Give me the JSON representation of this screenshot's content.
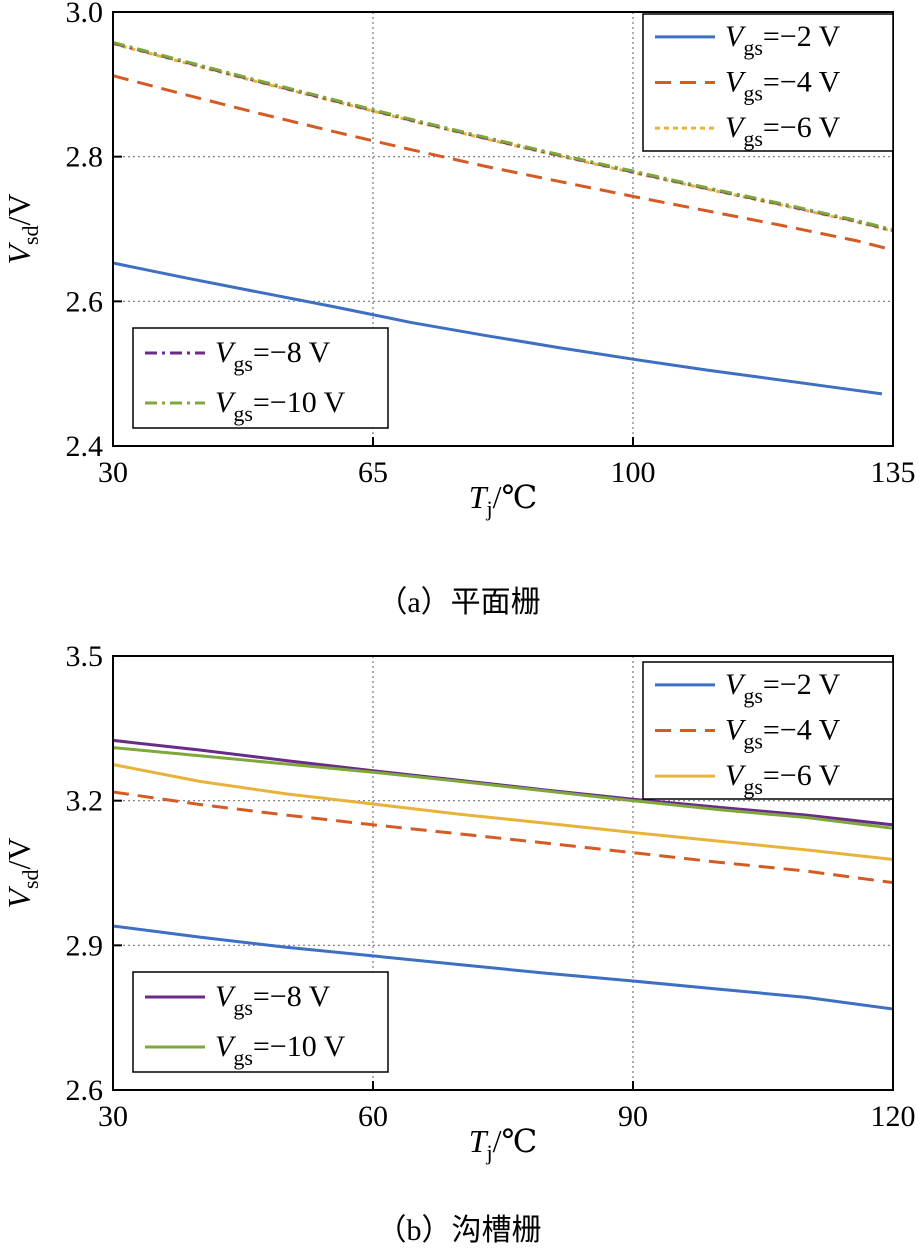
{
  "chart_data": [
    {
      "type": "line",
      "caption": "（a）平面栅",
      "xlabel_symbol": "T",
      "xlabel_sub": "j",
      "xlabel_unit": "/℃",
      "ylabel_symbol": "V",
      "ylabel_sub": "sd",
      "ylabel_unit": "/V",
      "xlim": [
        30,
        135
      ],
      "ylim": [
        2.4,
        3.0
      ],
      "xticks": [
        30,
        65,
        100,
        135
      ],
      "yticks": [
        2.4,
        2.6,
        2.8,
        3.0
      ],
      "xtick_labels": [
        "30",
        "65",
        "100",
        "135"
      ],
      "ytick_labels": [
        "2.4",
        "2.6",
        "2.8",
        "3.0"
      ],
      "grid": true,
      "legend_groups": [
        {
          "placement": "top-right",
          "series": [
            0,
            1,
            2
          ]
        },
        {
          "placement": "bottom-left",
          "series": [
            3,
            4
          ]
        }
      ],
      "series": [
        {
          "name": "Vgs=−2 V",
          "label_symbol": "V",
          "label_sub": "gs",
          "label_value": "=−2 V",
          "color": "#3d6fc2",
          "dash": "solid",
          "x": [
            30,
            40,
            50,
            60,
            70,
            80,
            90,
            100,
            110,
            120,
            130,
            133.5
          ],
          "y": [
            2.653,
            2.632,
            2.612,
            2.592,
            2.571,
            2.553,
            2.536,
            2.52,
            2.505,
            2.491,
            2.477,
            2.472
          ]
        },
        {
          "name": "Vgs=−4 V",
          "label_symbol": "V",
          "label_sub": "gs",
          "label_value": "=−4 V",
          "color": "#d45b23",
          "dash": "dashed",
          "x": [
            30,
            40,
            50,
            60,
            70,
            80,
            90,
            100,
            110,
            120,
            130,
            135
          ],
          "y": [
            2.912,
            2.885,
            2.859,
            2.834,
            2.81,
            2.787,
            2.766,
            2.745,
            2.725,
            2.705,
            2.684,
            2.671
          ]
        },
        {
          "name": "Vgs=−6 V",
          "label_symbol": "V",
          "label_sub": "gs",
          "label_value": "=−6 V",
          "color": "#e8b33a",
          "dash": "dotted",
          "x": [
            30,
            40,
            50,
            60,
            70,
            80,
            90,
            100,
            110,
            120,
            130,
            135
          ],
          "y": [
            2.956,
            2.929,
            2.902,
            2.876,
            2.85,
            2.825,
            2.801,
            2.778,
            2.755,
            2.733,
            2.71,
            2.697
          ]
        },
        {
          "name": "Vgs=−8 V",
          "label_symbol": "V",
          "label_sub": "gs",
          "label_value": "=−8 V",
          "color": "#6a2a8a",
          "dash": "dashdot",
          "x": [
            30,
            40,
            50,
            60,
            70,
            80,
            90,
            100,
            110,
            120,
            130,
            135
          ],
          "y": [
            2.957,
            2.93,
            2.903,
            2.877,
            2.851,
            2.826,
            2.802,
            2.779,
            2.756,
            2.734,
            2.711,
            2.698
          ]
        },
        {
          "name": "Vgs=−10 V",
          "label_symbol": "V",
          "label_sub": "gs",
          "label_value": "=−10 V",
          "color": "#7ea83a",
          "dash": "dashdot",
          "x": [
            30,
            40,
            50,
            60,
            70,
            80,
            90,
            100,
            110,
            120,
            130,
            135
          ],
          "y": [
            2.958,
            2.931,
            2.904,
            2.878,
            2.852,
            2.827,
            2.803,
            2.78,
            2.757,
            2.735,
            2.712,
            2.699
          ]
        }
      ]
    },
    {
      "type": "line",
      "caption": "（b）沟槽栅",
      "xlabel_symbol": "T",
      "xlabel_sub": "j",
      "xlabel_unit": "/℃",
      "ylabel_symbol": "V",
      "ylabel_sub": "sd",
      "ylabel_unit": "/V",
      "xlim": [
        30,
        120
      ],
      "ylim": [
        2.6,
        3.5
      ],
      "xticks": [
        30,
        60,
        90,
        120
      ],
      "yticks": [
        2.6,
        2.9,
        3.2,
        3.5
      ],
      "xtick_labels": [
        "30",
        "60",
        "90",
        "120"
      ],
      "ytick_labels": [
        "2.6",
        "2.9",
        "3.2",
        "3.5"
      ],
      "grid": true,
      "legend_groups": [
        {
          "placement": "top-right",
          "series": [
            0,
            1,
            2
          ]
        },
        {
          "placement": "bottom-left",
          "series": [
            3,
            4
          ]
        }
      ],
      "series": [
        {
          "name": "Vgs=−2 V",
          "label_symbol": "V",
          "label_sub": "gs",
          "label_value": "=−2 V",
          "color": "#3d6fc2",
          "dash": "solid",
          "x": [
            30,
            40,
            50,
            60,
            70,
            80,
            90,
            100,
            110,
            120
          ],
          "y": [
            2.94,
            2.917,
            2.896,
            2.878,
            2.86,
            2.842,
            2.826,
            2.809,
            2.792,
            2.768
          ]
        },
        {
          "name": "Vgs=−4 V",
          "label_symbol": "V",
          "label_sub": "gs",
          "label_value": "=−4 V",
          "color": "#d45b23",
          "dash": "dashed",
          "x": [
            30,
            40,
            50,
            60,
            70,
            80,
            90,
            100,
            110,
            120
          ],
          "y": [
            3.218,
            3.192,
            3.17,
            3.15,
            3.131,
            3.112,
            3.092,
            3.072,
            3.054,
            3.03
          ]
        },
        {
          "name": "Vgs=−6 V",
          "label_symbol": "V",
          "label_sub": "gs",
          "label_value": "=−6 V",
          "color": "#e8b33a",
          "dash": "solid",
          "x": [
            30,
            40,
            50,
            60,
            70,
            80,
            90,
            100,
            110,
            120
          ],
          "y": [
            3.275,
            3.24,
            3.214,
            3.193,
            3.172,
            3.153,
            3.134,
            3.116,
            3.098,
            3.078
          ]
        },
        {
          "name": "Vgs=−8 V",
          "label_symbol": "V",
          "label_sub": "gs",
          "label_value": "=−8 V",
          "color": "#6a2a8a",
          "dash": "solid",
          "x": [
            30,
            40,
            50,
            60,
            70,
            80,
            90,
            100,
            110,
            120
          ],
          "y": [
            3.325,
            3.305,
            3.283,
            3.262,
            3.242,
            3.222,
            3.203,
            3.186,
            3.17,
            3.15
          ]
        },
        {
          "name": "Vgs=−10 V",
          "label_symbol": "V",
          "label_sub": "gs",
          "label_value": "=−10 V",
          "color": "#7ea83a",
          "dash": "solid",
          "x": [
            30,
            40,
            50,
            60,
            70,
            80,
            90,
            100,
            110,
            120
          ],
          "y": [
            3.31,
            3.293,
            3.276,
            3.259,
            3.24,
            3.22,
            3.2,
            3.181,
            3.165,
            3.143
          ]
        }
      ]
    }
  ]
}
